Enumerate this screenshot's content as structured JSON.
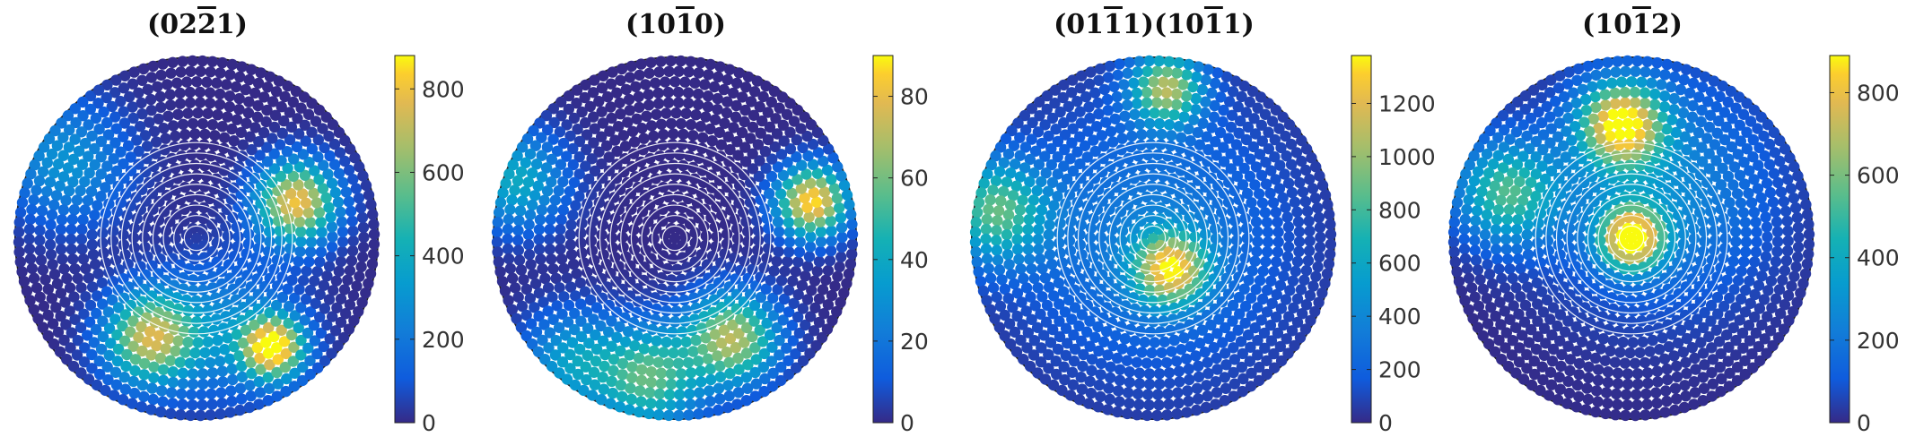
{
  "chart_data": [
    {
      "type": "scatter",
      "title": "(02Ĥ2̄1)",
      "title_display": "(02−21)",
      "colorbar": {
        "min": 0,
        "max": 880,
        "ticks": [
          0,
          200,
          400,
          600,
          800
        ]
      },
      "colormap": "parula",
      "hotspots": [
        {
          "r": 0.6,
          "theta_deg": 20,
          "value": 800,
          "spread": 0.16
        },
        {
          "r": 0.62,
          "theta_deg": 245,
          "value": 700,
          "spread": 0.18
        },
        {
          "r": 0.75,
          "theta_deg": 305,
          "value": 860,
          "spread": 0.12
        },
        {
          "r": 0.55,
          "theta_deg": 290,
          "value": 250,
          "spread": 0.28
        },
        {
          "r": 0.85,
          "theta_deg": 150,
          "value": 300,
          "spread": 0.25
        }
      ]
    },
    {
      "type": "scatter",
      "title": "(10Ą1̄0)",
      "colorbar": {
        "min": 0,
        "max": 90,
        "ticks": [
          0,
          20,
          40,
          60,
          80
        ]
      },
      "colormap": "parula",
      "hotspots": [
        {
          "r": 0.8,
          "theta_deg": 15,
          "value": 88,
          "spread": 0.14
        },
        {
          "r": 0.65,
          "theta_deg": 300,
          "value": 70,
          "spread": 0.18
        },
        {
          "r": 0.8,
          "theta_deg": 260,
          "value": 55,
          "spread": 0.2
        },
        {
          "r": 0.95,
          "theta_deg": 160,
          "value": 40,
          "spread": 0.2
        },
        {
          "r": 0.9,
          "theta_deg": 230,
          "value": 35,
          "spread": 0.2
        }
      ]
    },
    {
      "type": "scatter",
      "title": "(01Ą1̄1)(10Ą1̄1)",
      "colorbar": {
        "min": 0,
        "max": 1380,
        "ticks": [
          0,
          200,
          400,
          600,
          800,
          1000,
          1200
        ]
      },
      "colormap": "parula",
      "hotspots": [
        {
          "r": 0.85,
          "theta_deg": 85,
          "value": 1000,
          "spread": 0.14
        },
        {
          "r": 0.2,
          "theta_deg": 300,
          "value": 1100,
          "spread": 0.14
        },
        {
          "r": 0.9,
          "theta_deg": 170,
          "value": 800,
          "spread": 0.2
        },
        {
          "r": 0.0,
          "theta_deg": 0,
          "value": 350,
          "spread": 0.55
        }
      ]
    },
    {
      "type": "scatter",
      "title": "(10Ą1̄2)",
      "colorbar": {
        "min": 0,
        "max": 890,
        "ticks": [
          0,
          200,
          400,
          600,
          800
        ]
      },
      "colormap": "parula",
      "hotspots": [
        {
          "r": 0.0,
          "theta_deg": 0,
          "value": 850,
          "spread": 0.12
        },
        {
          "r": 0.65,
          "theta_deg": 95,
          "value": 820,
          "spread": 0.16
        },
        {
          "r": 0.75,
          "theta_deg": 160,
          "value": 500,
          "spread": 0.2
        },
        {
          "r": 0.3,
          "theta_deg": 60,
          "value": 280,
          "spread": 0.45
        }
      ]
    }
  ],
  "titles": [
    "(02Ĥ2̄1)",
    "(10Ą1̄0)",
    "(01Ą1̄1)(10Ą1̄1)",
    "(10Ą1̄2)"
  ]
}
